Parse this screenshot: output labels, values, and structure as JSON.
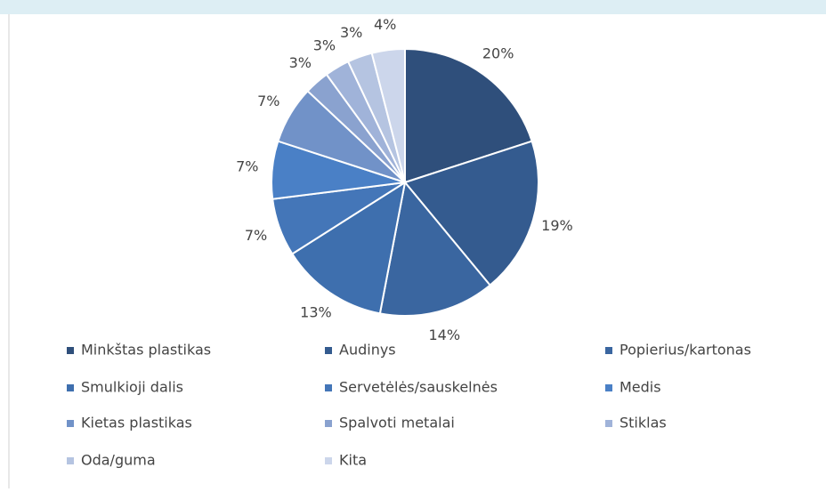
{
  "chart_data": {
    "type": "pie",
    "categories": [
      "Minkštas plastikas",
      "Audinys",
      "Popierius/kartonas",
      "Smulkioji dalis",
      "Servetėlės/sauskelnės",
      "Medis",
      "Kietas plastikas",
      "Spalvoti metalai",
      "Stiklas",
      "Oda/guma",
      "Kita"
    ],
    "values": [
      20,
      19,
      14,
      13,
      7,
      7,
      7,
      3,
      3,
      3,
      4
    ],
    "value_labels": [
      "20%",
      "19%",
      "14%",
      "13%",
      "7%",
      "7%",
      "7%",
      "3%",
      "3%",
      "3%",
      "4%"
    ],
    "colors": [
      "#2f4f7b",
      "#345b8f",
      "#3a66a0",
      "#3e6fae",
      "#4476b8",
      "#4a80c6",
      "#7192c8",
      "#8aa2cf",
      "#a0b3d9",
      "#b5c4e1",
      "#ccd6eb"
    ],
    "legend": "bottom"
  }
}
